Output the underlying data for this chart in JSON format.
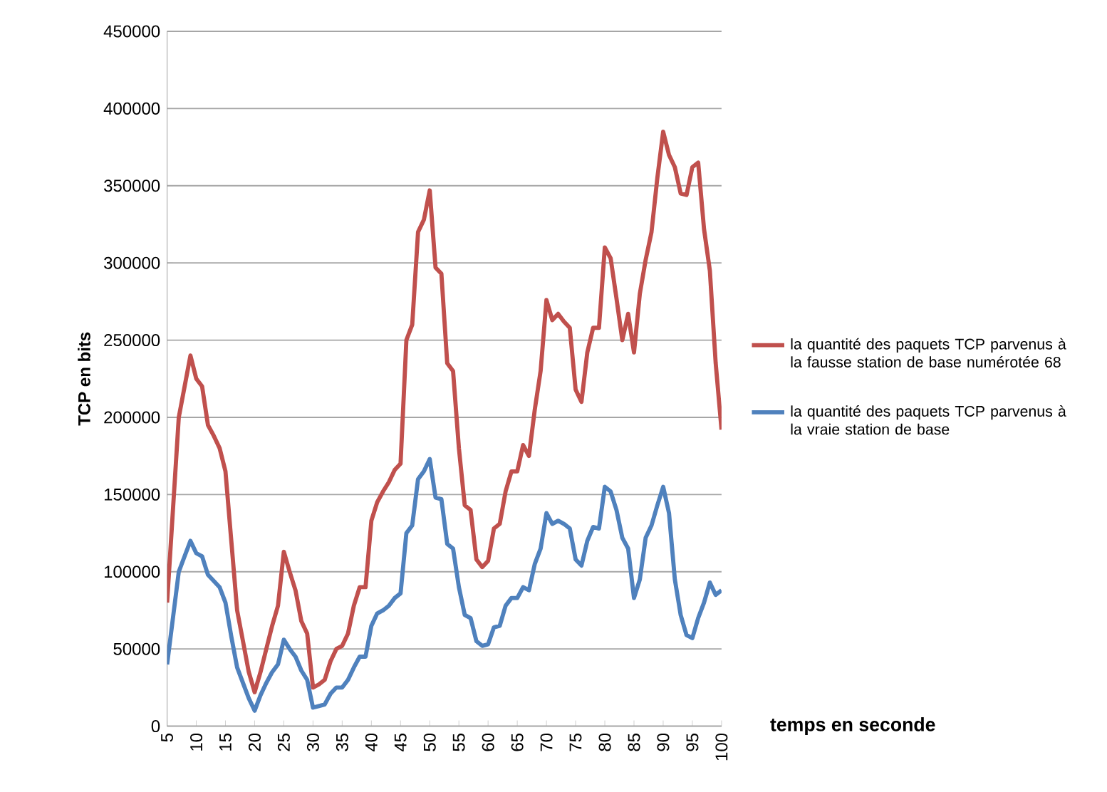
{
  "chart_data": {
    "type": "line",
    "xlabel": "temps en seconde",
    "ylabel": "TCP en bits",
    "x": [
      5,
      6,
      7,
      8,
      9,
      10,
      11,
      12,
      13,
      14,
      15,
      16,
      17,
      18,
      19,
      20,
      21,
      22,
      23,
      24,
      25,
      26,
      27,
      28,
      29,
      30,
      31,
      32,
      33,
      34,
      35,
      36,
      37,
      38,
      39,
      40,
      41,
      42,
      43,
      44,
      45,
      46,
      47,
      48,
      49,
      50,
      51,
      52,
      53,
      54,
      55,
      56,
      57,
      58,
      59,
      60,
      61,
      62,
      63,
      64,
      65,
      66,
      67,
      68,
      69,
      70,
      71,
      72,
      73,
      74,
      75,
      76,
      77,
      78,
      79,
      80,
      81,
      82,
      83,
      84,
      85,
      86,
      87,
      88,
      89,
      90,
      91,
      92,
      93,
      94,
      95,
      96,
      97,
      98,
      99,
      100
    ],
    "series": [
      {
        "name": "la quantité  des paquets TCP parvenus à la fausse station de base numérotée 68",
        "color": "#c0504d",
        "values": [
          80000,
          140000,
          200000,
          220000,
          240000,
          225000,
          220000,
          195000,
          188000,
          180000,
          165000,
          120000,
          75000,
          55000,
          35000,
          22000,
          35000,
          50000,
          65000,
          78000,
          113000,
          100000,
          88000,
          68000,
          60000,
          25000,
          27000,
          30000,
          42000,
          50000,
          52000,
          60000,
          78000,
          90000,
          90000,
          133000,
          145000,
          152000,
          158000,
          166000,
          170000,
          250000,
          260000,
          320000,
          328000,
          347000,
          297000,
          293000,
          235000,
          230000,
          180000,
          143000,
          140000,
          108000,
          103000,
          107000,
          128000,
          131000,
          152000,
          165000,
          165000,
          182000,
          175000,
          205000,
          230000,
          276000,
          263000,
          267000,
          262000,
          258000,
          218000,
          210000,
          242000,
          258000,
          258000,
          310000,
          303000,
          277000,
          250000,
          267000,
          242000,
          280000,
          302000,
          320000,
          355000,
          385000,
          370000,
          362000,
          345000,
          344000,
          362000,
          365000,
          322000,
          295000,
          235000,
          192000
        ]
      },
      {
        "name": "la quantité  des paquets TCP parvenus à la vraie station de base",
        "color": "#4f81bd",
        "values": [
          40000,
          70000,
          100000,
          110000,
          120000,
          112000,
          110000,
          98000,
          94000,
          90000,
          80000,
          58000,
          38000,
          28000,
          18000,
          10000,
          20000,
          28000,
          35000,
          40000,
          56000,
          50000,
          45000,
          36000,
          30000,
          12000,
          13000,
          14000,
          21000,
          25000,
          25000,
          30000,
          38000,
          45000,
          45000,
          65000,
          73000,
          75000,
          78000,
          83000,
          86000,
          125000,
          130000,
          160000,
          165000,
          173000,
          148000,
          147000,
          118000,
          115000,
          90000,
          72000,
          70000,
          55000,
          52000,
          53000,
          64000,
          65000,
          78000,
          83000,
          83000,
          90000,
          88000,
          105000,
          115000,
          138000,
          131000,
          133000,
          131000,
          128000,
          108000,
          104000,
          120000,
          129000,
          128000,
          155000,
          152000,
          140000,
          122000,
          115000,
          83000,
          95000,
          122000,
          130000,
          143000,
          155000,
          138000,
          95000,
          72000,
          59000,
          57000,
          70000,
          80000,
          93000,
          85000,
          88000
        ]
      }
    ],
    "xlim": [
      5,
      100
    ],
    "xticks": [
      5,
      10,
      15,
      20,
      25,
      30,
      35,
      40,
      45,
      50,
      55,
      60,
      65,
      70,
      75,
      80,
      85,
      90,
      95,
      100
    ],
    "ylim": [
      0,
      450000
    ],
    "yticks": [
      0,
      50000,
      100000,
      150000,
      200000,
      250000,
      300000,
      350000,
      400000,
      450000
    ],
    "grid": "y",
    "legend": "right",
    "marker": "none",
    "line_style": "solid"
  }
}
